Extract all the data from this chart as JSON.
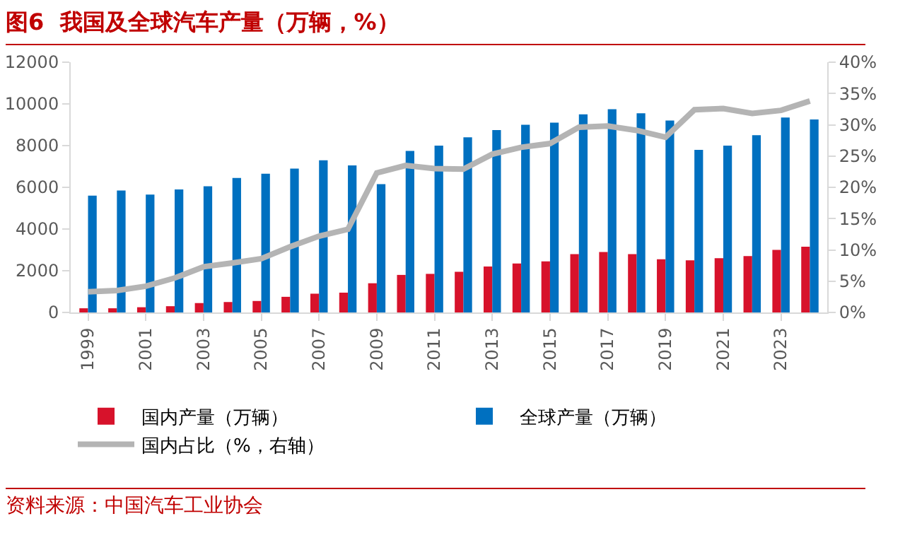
{
  "chart_data": {
    "type": "bar",
    "title": "图6  我国及全球汽车产量（万辆，%）",
    "categories": [
      "1999",
      null,
      "2001",
      null,
      "2003",
      null,
      "2005",
      null,
      "2007",
      null,
      "2009",
      null,
      "2011",
      null,
      "2013",
      null,
      "2015",
      null,
      "2017",
      null,
      "2019",
      null,
      "2021",
      null,
      "2023",
      null
    ],
    "series": [
      {
        "name": "国内产量（万辆）",
        "color": "#d7122b",
        "values": [
          200,
          200,
          250,
          300,
          450,
          500,
          550,
          750,
          900,
          950,
          1400,
          1800,
          1850,
          1950,
          2200,
          2350,
          2450,
          2800,
          2900,
          2800,
          2550,
          2500,
          2600,
          2700,
          3000,
          3150
        ]
      },
      {
        "name": "全球产量（万辆）",
        "color": "#0070c0",
        "values": [
          5600,
          5850,
          5650,
          5900,
          6050,
          6450,
          6650,
          6900,
          7300,
          7050,
          6150,
          7750,
          8000,
          8400,
          8750,
          9000,
          9100,
          9500,
          9750,
          9550,
          9200,
          7800,
          8000,
          8500,
          9350,
          9250
        ]
      },
      {
        "name": "国内占比（%，右轴）",
        "color": "#b4b4b4",
        "type": "line",
        "axis": "y2",
        "values": [
          3.3,
          3.5,
          4.2,
          5.5,
          7.3,
          7.9,
          8.6,
          10.5,
          12.2,
          13.3,
          22.3,
          23.5,
          23.0,
          22.9,
          25.3,
          26.4,
          27.0,
          29.6,
          29.8,
          29.1,
          28.0,
          32.4,
          32.6,
          31.8,
          32.3,
          33.8
        ]
      }
    ],
    "ylim": [
      0,
      12000
    ],
    "yticks": [
      0,
      2000,
      4000,
      6000,
      8000,
      10000,
      12000
    ],
    "y2lim": [
      0,
      40
    ],
    "y2ticks": [
      {
        "value": 0,
        "label": "0%"
      },
      {
        "value": 5,
        "label": "5%"
      },
      {
        "value": 10,
        "label": "10%"
      },
      {
        "value": 15,
        "label": "15%"
      },
      {
        "value": 20,
        "label": "20%"
      },
      {
        "value": 25,
        "label": "25%"
      },
      {
        "value": 30,
        "label": "30%"
      },
      {
        "value": 35,
        "label": "35%"
      },
      {
        "value": 40,
        "label": "40%"
      }
    ],
    "grid": false,
    "legend": "bottom",
    "marker": "none",
    "line_style": "solid",
    "annotations": [
      "资料来源：中国汽车工业协会"
    ]
  }
}
